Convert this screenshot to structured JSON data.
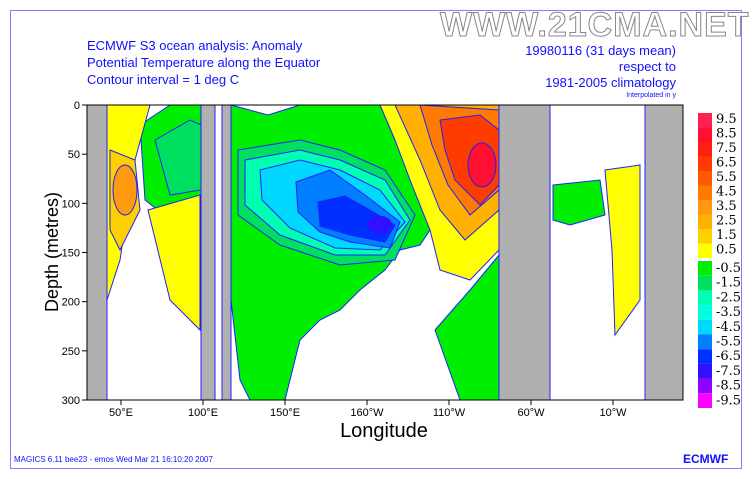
{
  "watermark": "WWW.21CMA.NET",
  "title_left": [
    "ECMWF S3 ocean analysis: Anomaly",
    "Potential Temperature along the Equator",
    "Contour interval = 1 deg C"
  ],
  "title_right": [
    "19980116 (31 days mean)",
    "respect to",
    "1981-2005 climatology"
  ],
  "note": "Interpolated in y",
  "footer": "MAGICS 6.11 bee23 - emos Wed Mar 21 16:10:20 2007",
  "logo": "ECMWF",
  "chart_data": {
    "type": "heatmap",
    "subtype": "filled contour depth-longitude section",
    "xlabel": "Longitude",
    "ylabel": "Depth (metres)",
    "xticks": [
      "50°E",
      "100°E",
      "150°E",
      "160°W",
      "110°W",
      "60°W",
      "10°W"
    ],
    "yticks": [
      "0",
      "50",
      "100",
      "150",
      "200",
      "250",
      "300"
    ],
    "ylim": [
      300,
      0
    ],
    "legend_levels": [
      "9.5",
      "8.5",
      "7.5",
      "6.5",
      "5.5",
      "4.5",
      "3.5",
      "2.5",
      "1.5",
      "0.5",
      "-0.5",
      "-1.5",
      "-2.5",
      "-3.5",
      "-4.5",
      "-5.5",
      "-6.5",
      "-7.5",
      "-8.5",
      "-9.5"
    ],
    "positive_colors": [
      "#ff2050",
      "#ff1030",
      "#ff2010",
      "#ff3c00",
      "#ff5a00",
      "#ff7a00",
      "#ff9a10",
      "#ffb000",
      "#ffd000",
      "#ffff00"
    ],
    "negative_colors": [
      "#00ee00",
      "#00e060",
      "#00ffb0",
      "#00ffe0",
      "#00d8ff",
      "#0080ff",
      "#0030ff",
      "#3010ff",
      "#9000ff",
      "#ff00ff"
    ],
    "features": [
      "warm anomaly max ~8 degC near 90°W at 60 m",
      "cold anomaly ~-6.5 degC near 160°W at 120 m"
    ]
  }
}
